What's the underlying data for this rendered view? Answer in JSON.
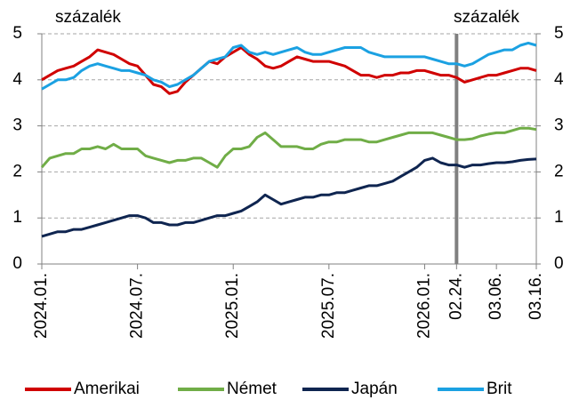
{
  "chart_data": {
    "type": "line",
    "y_label": "százalék",
    "y2_label": "százalék",
    "x": [
      "2024.01.",
      null,
      null,
      null,
      null,
      null,
      null,
      null,
      null,
      null,
      null,
      null,
      "2024.07.",
      null,
      null,
      null,
      null,
      null,
      null,
      null,
      null,
      null,
      null,
      null,
      "2025.01.",
      null,
      null,
      null,
      null,
      null,
      null,
      null,
      null,
      null,
      null,
      null,
      "2025.07.",
      null,
      null,
      null,
      null,
      null,
      null,
      null,
      null,
      null,
      null,
      null,
      "2026.01.",
      null,
      null,
      null,
      "02.24.",
      null,
      null,
      null,
      null,
      "03.06.",
      null,
      null,
      null,
      null,
      "03.16."
    ],
    "series": [
      {
        "name": "Amerikai",
        "color": "#d00000",
        "values": [
          4.0,
          4.1,
          4.2,
          4.25,
          4.3,
          4.4,
          4.5,
          4.65,
          4.6,
          4.55,
          4.45,
          4.35,
          4.3,
          4.1,
          3.9,
          3.85,
          3.7,
          3.75,
          3.95,
          4.1,
          4.25,
          4.4,
          4.35,
          4.5,
          4.6,
          4.7,
          4.55,
          4.45,
          4.3,
          4.25,
          4.3,
          4.4,
          4.5,
          4.45,
          4.4,
          4.4,
          4.4,
          4.35,
          4.3,
          4.2,
          4.1,
          4.1,
          4.05,
          4.1,
          4.1,
          4.15,
          4.15,
          4.2,
          4.2,
          4.15,
          4.1,
          4.1,
          4.05,
          3.95,
          4.0,
          4.05,
          4.1,
          4.1,
          4.15,
          4.2,
          4.25,
          4.25,
          4.2
        ]
      },
      {
        "name": "Német",
        "color": "#70ad47",
        "values": [
          2.1,
          2.3,
          2.35,
          2.4,
          2.4,
          2.5,
          2.5,
          2.55,
          2.5,
          2.6,
          2.5,
          2.5,
          2.5,
          2.35,
          2.3,
          2.25,
          2.2,
          2.25,
          2.25,
          2.3,
          2.3,
          2.2,
          2.1,
          2.35,
          2.5,
          2.5,
          2.55,
          2.75,
          2.85,
          2.7,
          2.55,
          2.55,
          2.55,
          2.5,
          2.5,
          2.6,
          2.65,
          2.65,
          2.7,
          2.7,
          2.7,
          2.65,
          2.65,
          2.7,
          2.75,
          2.8,
          2.85,
          2.85,
          2.85,
          2.85,
          2.8,
          2.75,
          2.7,
          2.7,
          2.72,
          2.78,
          2.82,
          2.85,
          2.85,
          2.9,
          2.95,
          2.95,
          2.92
        ]
      },
      {
        "name": "Japán",
        "color": "#0f2550",
        "values": [
          0.6,
          0.65,
          0.7,
          0.7,
          0.75,
          0.75,
          0.8,
          0.85,
          0.9,
          0.95,
          1.0,
          1.05,
          1.05,
          1.0,
          0.9,
          0.9,
          0.85,
          0.85,
          0.9,
          0.9,
          0.95,
          1.0,
          1.05,
          1.05,
          1.1,
          1.15,
          1.25,
          1.35,
          1.5,
          1.4,
          1.3,
          1.35,
          1.4,
          1.45,
          1.45,
          1.5,
          1.5,
          1.55,
          1.55,
          1.6,
          1.65,
          1.7,
          1.7,
          1.75,
          1.8,
          1.9,
          2.0,
          2.1,
          2.25,
          2.3,
          2.2,
          2.15,
          2.15,
          2.1,
          2.15,
          2.15,
          2.18,
          2.2,
          2.2,
          2.22,
          2.25,
          2.27,
          2.28
        ]
      },
      {
        "name": "Brit",
        "color": "#1ba1e2",
        "values": [
          3.8,
          3.9,
          4.0,
          4.0,
          4.05,
          4.2,
          4.3,
          4.35,
          4.3,
          4.25,
          4.2,
          4.2,
          4.15,
          4.1,
          4.0,
          3.95,
          3.85,
          3.9,
          4.0,
          4.1,
          4.25,
          4.4,
          4.45,
          4.5,
          4.7,
          4.75,
          4.6,
          4.55,
          4.6,
          4.55,
          4.6,
          4.65,
          4.7,
          4.6,
          4.55,
          4.55,
          4.6,
          4.65,
          4.7,
          4.7,
          4.7,
          4.6,
          4.55,
          4.5,
          4.5,
          4.5,
          4.5,
          4.5,
          4.5,
          4.45,
          4.4,
          4.35,
          4.35,
          4.3,
          4.35,
          4.45,
          4.55,
          4.6,
          4.65,
          4.65,
          4.75,
          4.8,
          4.75
        ]
      }
    ],
    "ylim": [
      0,
      5
    ],
    "yticks": [
      0,
      1,
      2,
      3,
      4,
      5
    ],
    "y2lim": [
      0,
      5
    ],
    "y2ticks": [
      0,
      1,
      2,
      3,
      4,
      5
    ],
    "grid": true,
    "legend": "bottom",
    "vertical_line": {
      "x": "02.24.",
      "color": "#808080"
    }
  }
}
